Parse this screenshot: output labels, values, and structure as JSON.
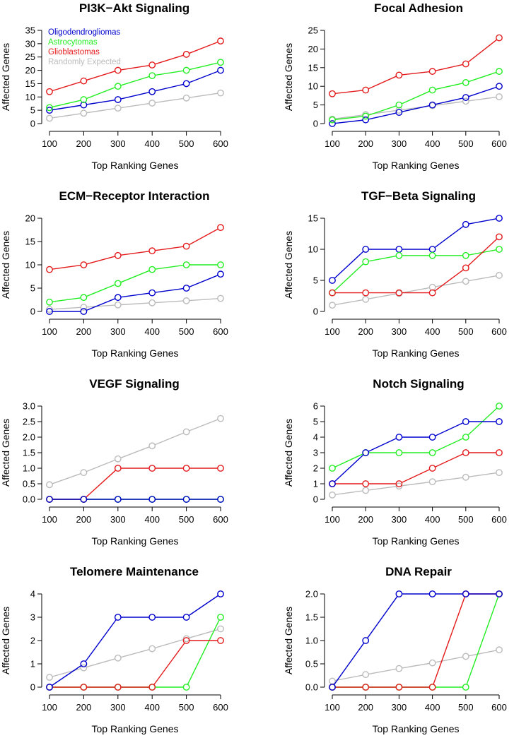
{
  "colors": {
    "Oligodendrogliomas": "#0000cd",
    "Astrocytomas": "#22ee22",
    "Glioblastomas": "#e41a1c",
    "Randomly Expected": "#bbbbbb"
  },
  "legend": [
    "Oligodendrogliomas",
    "Astrocytomas",
    "Glioblastomas",
    "Randomly Expected"
  ],
  "chart_data": [
    {
      "type": "line",
      "title": "PI3K−Akt Signaling",
      "xlabel": "Top Ranking Genes",
      "ylabel": "Affected Genes",
      "x": [
        100,
        200,
        300,
        400,
        500,
        600
      ],
      "xticks": [
        "100",
        "200",
        "300",
        "400",
        "500",
        "600"
      ],
      "ylim": [
        0,
        35
      ],
      "yticks": [
        "0",
        "5",
        "10",
        "15",
        "20",
        "25",
        "30",
        "35"
      ],
      "show_legend": true,
      "series": [
        {
          "name": "Randomly Expected",
          "values": [
            2,
            3.9,
            5.8,
            7.7,
            9.6,
            11.5
          ]
        },
        {
          "name": "Oligodendrogliomas",
          "values": [
            5,
            7,
            9,
            12,
            15,
            20
          ]
        },
        {
          "name": "Astrocytomas",
          "values": [
            6,
            9,
            14,
            18,
            20,
            23
          ]
        },
        {
          "name": "Glioblastomas",
          "values": [
            12,
            16,
            20,
            22,
            26,
            31
          ]
        }
      ]
    },
    {
      "type": "line",
      "title": "Focal Adhesion",
      "xlabel": "Top Ranking Genes",
      "ylabel": "Affected Genes",
      "x": [
        100,
        200,
        300,
        400,
        500,
        600
      ],
      "xticks": [
        "100",
        "200",
        "300",
        "400",
        "500",
        "600"
      ],
      "ylim": [
        0,
        25
      ],
      "yticks": [
        "0",
        "5",
        "10",
        "15",
        "20",
        "25"
      ],
      "show_legend": false,
      "series": [
        {
          "name": "Randomly Expected",
          "values": [
            1.2,
            2.4,
            3.6,
            4.8,
            6,
            7.2
          ]
        },
        {
          "name": "Oligodendrogliomas",
          "values": [
            0,
            1,
            3,
            5,
            7,
            10
          ]
        },
        {
          "name": "Astrocytomas",
          "values": [
            1,
            2,
            5,
            9,
            11,
            14
          ]
        },
        {
          "name": "Glioblastomas",
          "values": [
            8,
            9,
            13,
            14,
            16,
            23
          ]
        }
      ]
    },
    {
      "type": "line",
      "title": "ECM−Receptor Interaction",
      "xlabel": "Top Ranking Genes",
      "ylabel": "Affected Genes",
      "x": [
        100,
        200,
        300,
        400,
        500,
        600
      ],
      "xticks": [
        "100",
        "200",
        "300",
        "400",
        "500",
        "600"
      ],
      "ylim": [
        0,
        20
      ],
      "yticks": [
        "0",
        "5",
        "10",
        "15",
        "20"
      ],
      "show_legend": false,
      "series": [
        {
          "name": "Randomly Expected",
          "values": [
            0.45,
            0.9,
            1.4,
            1.85,
            2.3,
            2.8
          ]
        },
        {
          "name": "Oligodendrogliomas",
          "values": [
            0,
            0,
            3,
            4,
            5,
            8
          ]
        },
        {
          "name": "Astrocytomas",
          "values": [
            2,
            3,
            6,
            9,
            10,
            10
          ]
        },
        {
          "name": "Glioblastomas",
          "values": [
            9,
            10,
            12,
            13,
            14,
            18
          ]
        }
      ]
    },
    {
      "type": "line",
      "title": "TGF−Beta Signaling",
      "xlabel": "Top Ranking Genes",
      "ylabel": "Affected Genes",
      "x": [
        100,
        200,
        300,
        400,
        500,
        600
      ],
      "xticks": [
        "100",
        "200",
        "300",
        "400",
        "500",
        "600"
      ],
      "ylim": [
        0,
        15
      ],
      "yticks": [
        "0",
        "5",
        "10",
        "15"
      ],
      "show_legend": false,
      "series": [
        {
          "name": "Randomly Expected",
          "values": [
            1,
            1.95,
            2.9,
            3.9,
            4.85,
            5.8
          ]
        },
        {
          "name": "Oligodendrogliomas",
          "values": [
            5,
            10,
            10,
            10,
            14,
            15
          ]
        },
        {
          "name": "Astrocytomas",
          "values": [
            3,
            8,
            9,
            9,
            9,
            10
          ]
        },
        {
          "name": "Glioblastomas",
          "values": [
            3,
            3,
            3,
            3,
            7,
            12
          ]
        }
      ]
    },
    {
      "type": "line",
      "title": "VEGF Signaling",
      "xlabel": "Top Ranking Genes",
      "ylabel": "Affected Genes",
      "x": [
        100,
        200,
        300,
        400,
        500,
        600
      ],
      "xticks": [
        "100",
        "200",
        "300",
        "400",
        "500",
        "600"
      ],
      "ylim": [
        0,
        3
      ],
      "yticks": [
        "0.0",
        "0.5",
        "1.0",
        "1.5",
        "2.0",
        "2.5",
        "3.0"
      ],
      "show_legend": false,
      "series": [
        {
          "name": "Randomly Expected",
          "values": [
            0.47,
            0.86,
            1.3,
            1.72,
            2.17,
            2.6
          ]
        },
        {
          "name": "Astrocytomas",
          "values": [
            0,
            0,
            0,
            0,
            0,
            0
          ]
        },
        {
          "name": "Glioblastomas",
          "values": [
            0,
            0,
            1,
            1,
            1,
            1
          ]
        },
        {
          "name": "Oligodendrogliomas",
          "values": [
            0,
            0,
            0,
            0,
            0,
            0
          ]
        }
      ]
    },
    {
      "type": "line",
      "title": "Notch Signaling",
      "xlabel": "Top Ranking Genes",
      "ylabel": "Affected Genes",
      "x": [
        100,
        200,
        300,
        400,
        500,
        600
      ],
      "xticks": [
        "100",
        "200",
        "300",
        "400",
        "500",
        "600"
      ],
      "ylim": [
        0,
        6
      ],
      "yticks": [
        "0",
        "1",
        "2",
        "3",
        "4",
        "5",
        "6"
      ],
      "show_legend": false,
      "series": [
        {
          "name": "Randomly Expected",
          "values": [
            0.28,
            0.57,
            0.85,
            1.13,
            1.42,
            1.72
          ]
        },
        {
          "name": "Glioblastomas",
          "values": [
            1,
            1,
            1,
            2,
            3,
            3
          ]
        },
        {
          "name": "Astrocytomas",
          "values": [
            2,
            3,
            3,
            3,
            4,
            6
          ]
        },
        {
          "name": "Oligodendrogliomas",
          "values": [
            1,
            3,
            4,
            4,
            5,
            5
          ]
        }
      ]
    },
    {
      "type": "line",
      "title": "Telomere Maintenance",
      "xlabel": "Top Ranking Genes",
      "ylabel": "Affected Genes",
      "x": [
        100,
        200,
        300,
        400,
        500,
        600
      ],
      "xticks": [
        "100",
        "200",
        "300",
        "400",
        "500",
        "600"
      ],
      "ylim": [
        0,
        4
      ],
      "yticks": [
        "0",
        "1",
        "2",
        "3",
        "4"
      ],
      "show_legend": false,
      "series": [
        {
          "name": "Randomly Expected",
          "values": [
            0.42,
            0.83,
            1.25,
            1.65,
            2.08,
            2.5
          ]
        },
        {
          "name": "Astrocytomas",
          "values": [
            0,
            0,
            0,
            0,
            0,
            3
          ]
        },
        {
          "name": "Glioblastomas",
          "values": [
            0,
            0,
            0,
            0,
            2,
            2
          ]
        },
        {
          "name": "Oligodendrogliomas",
          "values": [
            0,
            1,
            3,
            3,
            3,
            4
          ]
        }
      ]
    },
    {
      "type": "line",
      "title": "DNA Repair",
      "xlabel": "Top Ranking Genes",
      "ylabel": "Affected Genes",
      "x": [
        100,
        200,
        300,
        400,
        500,
        600
      ],
      "xticks": [
        "100",
        "200",
        "300",
        "400",
        "500",
        "600"
      ],
      "ylim": [
        0,
        2
      ],
      "yticks": [
        "0.0",
        "0.5",
        "1.0",
        "1.5",
        "2.0"
      ],
      "show_legend": false,
      "series": [
        {
          "name": "Randomly Expected",
          "values": [
            0.13,
            0.27,
            0.4,
            0.52,
            0.66,
            0.8
          ]
        },
        {
          "name": "Astrocytomas",
          "values": [
            0,
            0,
            0,
            0,
            0,
            2
          ]
        },
        {
          "name": "Glioblastomas",
          "values": [
            0,
            0,
            0,
            0,
            2,
            2
          ]
        },
        {
          "name": "Oligodendrogliomas",
          "values": [
            0,
            1,
            2,
            2,
            2,
            2
          ]
        }
      ]
    }
  ]
}
